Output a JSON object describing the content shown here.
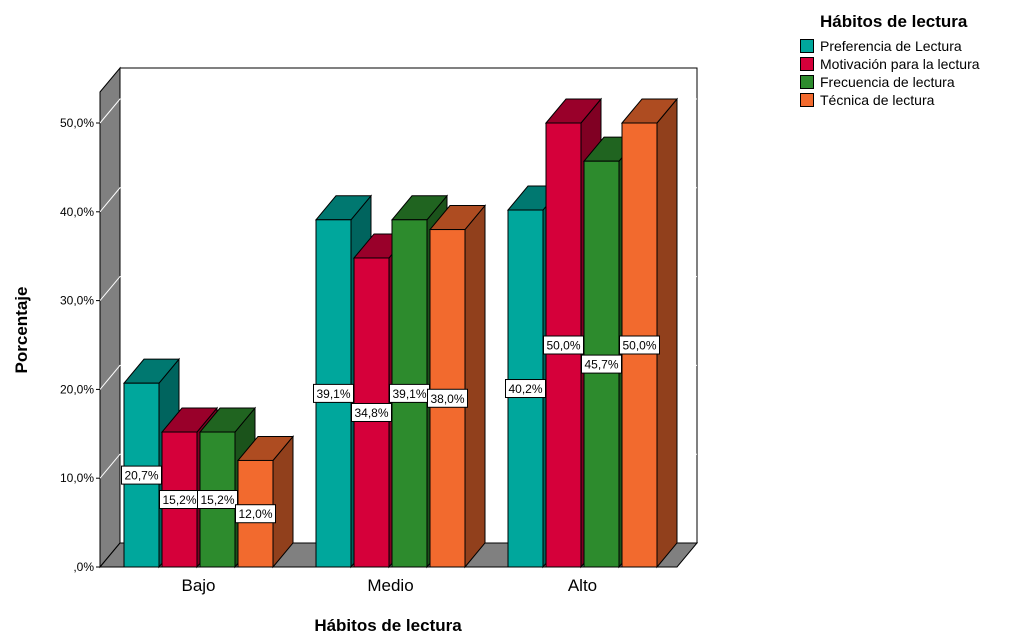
{
  "chart_data": {
    "type": "bar",
    "style": "3d-clustered",
    "xlabel": "Hábitos de lectura",
    "ylabel": "Porcentaje",
    "categories": [
      "Bajo",
      "Medio",
      "Alto"
    ],
    "ylim": [
      0,
      50
    ],
    "yticks": [
      0,
      10,
      20,
      30,
      40,
      50
    ],
    "ytick_labels": [
      ",0%",
      "10,0%",
      "20,0%",
      "30,0%",
      "40,0%",
      "50,0%"
    ],
    "legend_title": "Hábitos de lectura",
    "legend_position": "top-right",
    "series": [
      {
        "name": "Preferencia de Lectura",
        "values": [
          20.7,
          39.1,
          40.2
        ],
        "labels": [
          "20,7%",
          "39,1%",
          "40,2%"
        ],
        "color": "#00a79c"
      },
      {
        "name": "Motivación para la lectura",
        "values": [
          15.2,
          34.8,
          50.0
        ],
        "labels": [
          "15,2%",
          "34,8%",
          "50,0%"
        ],
        "color": "#d5003a"
      },
      {
        "name": "Frecuencia de lectura",
        "values": [
          15.2,
          39.1,
          45.7
        ],
        "labels": [
          "15,2%",
          "39,1%",
          "45,7%"
        ],
        "color": "#2d8b2d"
      },
      {
        "name": "Técnica de lectura",
        "values": [
          12.0,
          38.0,
          50.0
        ],
        "labels": [
          "12,0%",
          "38,0%",
          "50,0%"
        ],
        "color": "#f26a2e"
      }
    ]
  }
}
